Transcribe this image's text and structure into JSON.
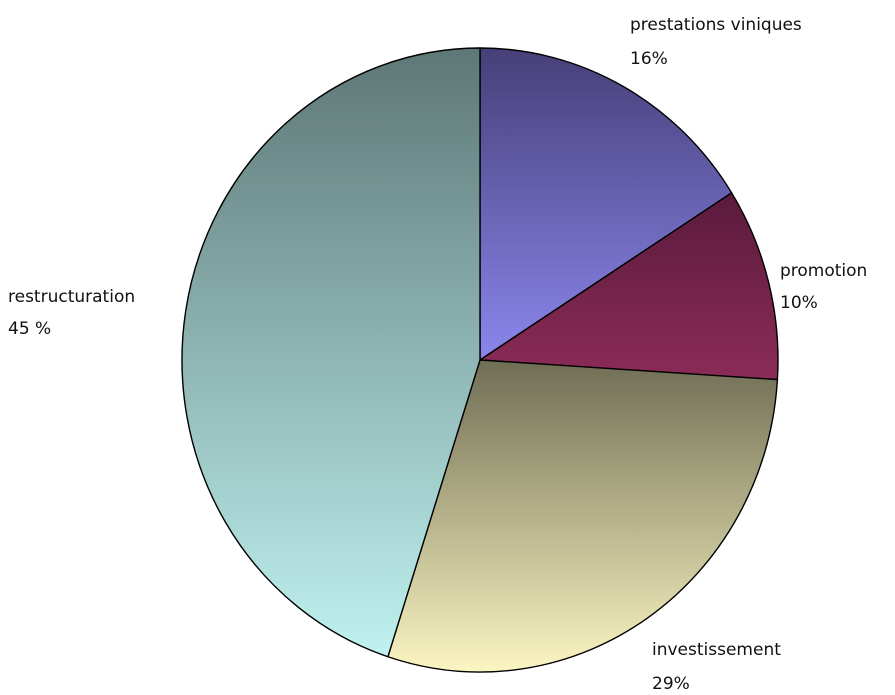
{
  "chart_data": {
    "type": "pie",
    "title": "",
    "start_angle_deg": 0,
    "direction": "clockwise",
    "slices": [
      {
        "label": "prestations viniques",
        "value": 16,
        "value_label": "16%",
        "color_top": "#463f78",
        "color_bottom": "#8b86ec"
      },
      {
        "label": "promotion",
        "value": 10,
        "value_label": "10%",
        "color_top": "#5a1b3c",
        "color_bottom": "#8c2b58"
      },
      {
        "label": "investissement",
        "value": 29,
        "value_label": "29%",
        "color_top": "#6f6d54",
        "color_bottom": "#fbf6c2"
      },
      {
        "label": "restructuration",
        "value": 45,
        "value_label": "45 %",
        "color_top": "#5d7776",
        "color_bottom": "#bff2f0"
      }
    ]
  }
}
